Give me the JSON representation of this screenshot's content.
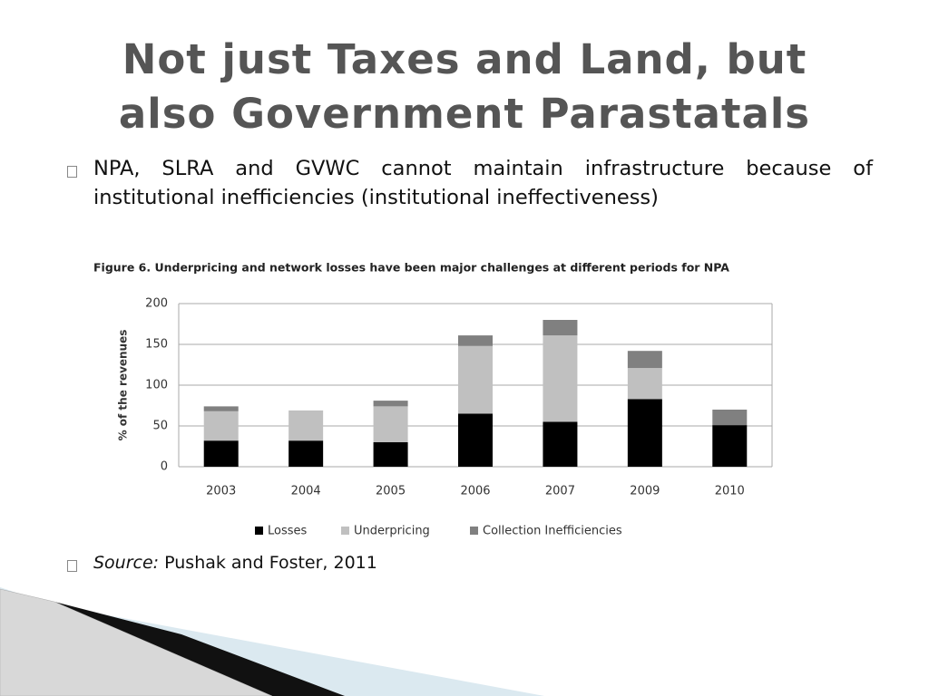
{
  "slide": {
    "title_lines": [
      "Not just Taxes and Land, but",
      "also Government Parastatals"
    ],
    "bullets": [
      "NPA, SLRA and GVWC cannot maintain infrastructure because of institutional inefficiencies (institutional ineffectiveness)"
    ],
    "source_label": "Source:",
    "source_text": "Pushak and Foster, 2011"
  },
  "chart_data": {
    "type": "stacked_bar",
    "title": "Figure 6. Underpricing and network losses have been major challenges at different periods for NPA",
    "ylabel": "% of the revenues",
    "categories": [
      "2003",
      "2004",
      "2005",
      "2006",
      "2007",
      "2009",
      "2010"
    ],
    "series": [
      {
        "name": "Losses",
        "color": "#000000",
        "values": [
          32,
          32,
          30,
          65,
          55,
          83,
          51
        ]
      },
      {
        "name": "Underpricing",
        "color": "#c0c0c0",
        "values": [
          36,
          37,
          44,
          83,
          106,
          38,
          0
        ]
      },
      {
        "name": "Collection Inefficiencies",
        "color": "#808080",
        "values": [
          6,
          0,
          7,
          13,
          19,
          21,
          19
        ]
      }
    ],
    "ylim": [
      0,
      200
    ],
    "yticks": [
      0,
      50,
      100,
      150,
      200
    ],
    "grid": true,
    "legend": "bottom"
  }
}
